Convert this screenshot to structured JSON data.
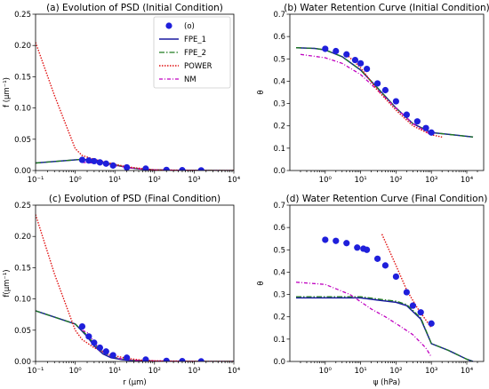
{
  "colors": {
    "obs": "#1f1fdb",
    "fpe1": "#1a1aa0",
    "fpe2": "#1e7a1e",
    "power": "#e01010",
    "nm": "#c000c0"
  },
  "legend": {
    "placement": "upper-right of panel (a)",
    "entries": [
      {
        "key": "obs",
        "label": "(o)",
        "style": "marker"
      },
      {
        "key": "fpe1",
        "label": "FPE_1",
        "style": "solid"
      },
      {
        "key": "fpe2",
        "label": "FPE_2",
        "style": "dashdot"
      },
      {
        "key": "power",
        "label": "POWER",
        "style": "dotted"
      },
      {
        "key": "nm",
        "label": "NM",
        "style": "dashdot2"
      }
    ]
  },
  "chart_data": [
    {
      "id": "a",
      "type": "line",
      "title": "(a) Evolution of PSD (Initial Condition)",
      "xlabel": "",
      "ylabel": "f (μm⁻¹)",
      "xscale": "log",
      "xlim": [
        0.1,
        10000
      ],
      "ylim": [
        0,
        0.25
      ],
      "yticks": [
        0,
        0.05,
        0.1,
        0.15,
        0.2,
        0.25
      ],
      "ytick_labels": [
        "0.00",
        "0.05",
        "0.10",
        "0.15",
        "0.20",
        "0.25"
      ],
      "xtick_labels": [
        "10⁻¹",
        "10⁰",
        "10¹",
        "10²",
        "10³",
        "10⁴"
      ],
      "series": [
        {
          "key": "obs",
          "x": [
            1.5,
            2.2,
            3.0,
            4.2,
            6,
            9,
            20,
            60,
            200,
            500,
            1500
          ],
          "y": [
            0.017,
            0.016,
            0.015,
            0.013,
            0.011,
            0.008,
            0.005,
            0.003,
            0.001,
            0.0005,
            0.0003
          ]
        },
        {
          "key": "fpe1",
          "x": [
            0.1,
            1.5,
            3,
            6,
            10,
            20,
            50,
            100,
            300,
            1000,
            10000
          ],
          "y": [
            0.012,
            0.018,
            0.016,
            0.012,
            0.009,
            0.005,
            0.002,
            0.001,
            0.0003,
            0.0001,
            0
          ]
        },
        {
          "key": "fpe2",
          "x": [
            0.1,
            1.5,
            3,
            6,
            10,
            20,
            50,
            100,
            300,
            1000,
            10000
          ],
          "y": [
            0.012,
            0.018,
            0.016,
            0.012,
            0.009,
            0.005,
            0.002,
            0.001,
            0.0003,
            0.0001,
            0
          ]
        },
        {
          "key": "power",
          "x": [
            0.1,
            0.3,
            1,
            1.5,
            3,
            6,
            10,
            20,
            50,
            100,
            1000,
            10000
          ],
          "y": [
            0.205,
            0.12,
            0.035,
            0.024,
            0.018,
            0.013,
            0.01,
            0.006,
            0.003,
            0.001,
            0.0002,
            0
          ]
        },
        {
          "key": "nm",
          "x": [
            1.5,
            3,
            6,
            10,
            20,
            50,
            100,
            1000
          ],
          "y": [
            0.013,
            0.012,
            0.01,
            0.008,
            0.005,
            0.002,
            0.001,
            0
          ]
        }
      ]
    },
    {
      "id": "b",
      "type": "line",
      "title": "(b) Water Retention Curve (Initial Condition)",
      "xlabel": "",
      "ylabel": "θ",
      "xscale": "log",
      "xlim": [
        0.1,
        30000
      ],
      "ylim": [
        0,
        0.7
      ],
      "yticks": [
        0,
        0.1,
        0.2,
        0.3,
        0.4,
        0.5,
        0.6,
        0.7
      ],
      "ytick_labels": [
        "0.0",
        "0.1",
        "0.2",
        "0.3",
        "0.4",
        "0.5",
        "0.6",
        "0.7"
      ],
      "xticks": [
        1,
        10,
        100,
        1000,
        10000
      ],
      "xtick_labels": [
        "10⁰",
        "10¹",
        "10²",
        "10³",
        "10⁴"
      ],
      "series": [
        {
          "key": "obs",
          "x": [
            1,
            2,
            4,
            7,
            10,
            15,
            30,
            50,
            100,
            200,
            400,
            700,
            1000
          ],
          "y": [
            0.545,
            0.535,
            0.52,
            0.495,
            0.48,
            0.455,
            0.39,
            0.36,
            0.31,
            0.25,
            0.22,
            0.19,
            0.17
          ]
        },
        {
          "key": "fpe1",
          "x": [
            0.15,
            0.5,
            1,
            3,
            10,
            30,
            100,
            300,
            1000,
            3000,
            15000
          ],
          "y": [
            0.55,
            0.547,
            0.54,
            0.51,
            0.45,
            0.37,
            0.28,
            0.21,
            0.17,
            0.162,
            0.15
          ]
        },
        {
          "key": "fpe2",
          "x": [
            0.15,
            0.5,
            1,
            3,
            10,
            30,
            100,
            300,
            1000,
            3000,
            15000
          ],
          "y": [
            0.55,
            0.547,
            0.54,
            0.51,
            0.45,
            0.37,
            0.28,
            0.21,
            0.17,
            0.162,
            0.15
          ]
        },
        {
          "key": "power",
          "x": [
            4,
            10,
            30,
            100,
            300,
            1000,
            2000
          ],
          "y": [
            0.52,
            0.46,
            0.36,
            0.27,
            0.2,
            0.16,
            0.15
          ]
        },
        {
          "key": "nm",
          "x": [
            0.2,
            1,
            3,
            10,
            30,
            100,
            300,
            1000
          ],
          "y": [
            0.52,
            0.505,
            0.48,
            0.43,
            0.36,
            0.28,
            0.21,
            0.16
          ]
        }
      ]
    },
    {
      "id": "c",
      "type": "line",
      "title": "(c) Evolution of PSD (Final Condition)",
      "xlabel": "r (μm)",
      "ylabel": "f(μm⁻¹)",
      "xscale": "log",
      "xlim": [
        0.1,
        10000
      ],
      "ylim": [
        0,
        0.25
      ],
      "yticks": [
        0,
        0.05,
        0.1,
        0.15,
        0.2,
        0.25
      ],
      "ytick_labels": [
        "0.00",
        "0.05",
        "0.10",
        "0.15",
        "0.20",
        "0.25"
      ],
      "xtick_labels": [
        "10⁻¹",
        "10⁰",
        "10¹",
        "10²",
        "10³",
        "10⁴"
      ],
      "series": [
        {
          "key": "obs",
          "x": [
            1.5,
            2.2,
            3.0,
            4.2,
            6,
            9,
            20,
            60,
            200,
            500,
            1500
          ],
          "y": [
            0.056,
            0.04,
            0.03,
            0.022,
            0.016,
            0.01,
            0.006,
            0.003,
            0.001,
            0.0005,
            0.0002
          ]
        },
        {
          "key": "fpe1",
          "x": [
            0.1,
            1,
            2,
            3,
            5,
            8,
            15,
            30,
            100,
            1000,
            10000
          ],
          "y": [
            0.081,
            0.06,
            0.04,
            0.025,
            0.012,
            0.006,
            0.003,
            0.001,
            0.0003,
            0,
            0
          ]
        },
        {
          "key": "fpe2",
          "x": [
            0.1,
            1,
            2,
            3,
            5,
            8,
            15,
            30,
            100,
            1000,
            10000
          ],
          "y": [
            0.081,
            0.06,
            0.042,
            0.028,
            0.015,
            0.008,
            0.004,
            0.002,
            0.0005,
            0,
            0
          ]
        },
        {
          "key": "power",
          "x": [
            0.1,
            0.3,
            1,
            1.5,
            3,
            6,
            10,
            20,
            50,
            100,
            1000,
            10000
          ],
          "y": [
            0.235,
            0.14,
            0.05,
            0.035,
            0.022,
            0.013,
            0.009,
            0.005,
            0.002,
            0.001,
            0.0002,
            0
          ]
        },
        {
          "key": "nm",
          "x": [
            1.5,
            2.2,
            3,
            5,
            8,
            15,
            30,
            100,
            1000
          ],
          "y": [
            0.05,
            0.045,
            0.03,
            0.016,
            0.008,
            0.004,
            0.002,
            0.001,
            0
          ]
        }
      ]
    },
    {
      "id": "d",
      "type": "line",
      "title": "(d) Water Retention Curve (Final Condition)",
      "xlabel": "ψ (hPa)",
      "ylabel": "θ",
      "xscale": "log",
      "xlim": [
        0.1,
        30000
      ],
      "ylim": [
        0,
        0.7
      ],
      "yticks": [
        0,
        0.1,
        0.2,
        0.3,
        0.4,
        0.5,
        0.6,
        0.7
      ],
      "ytick_labels": [
        "0.0",
        "0.1",
        "0.2",
        "0.3",
        "0.4",
        "0.5",
        "0.6",
        "0.7"
      ],
      "xticks": [
        1,
        10,
        100,
        1000,
        10000
      ],
      "xtick_labels": [
        "10⁰",
        "10¹",
        "10²",
        "10³",
        "10⁴"
      ],
      "series": [
        {
          "key": "obs",
          "x": [
            1,
            2,
            4,
            8,
            12,
            15,
            30,
            50,
            100,
            200,
            300,
            500,
            1000
          ],
          "y": [
            0.545,
            0.54,
            0.53,
            0.51,
            0.505,
            0.5,
            0.46,
            0.43,
            0.38,
            0.31,
            0.25,
            0.22,
            0.17
          ]
        },
        {
          "key": "fpe1",
          "x": [
            0.15,
            1,
            10,
            30,
            100,
            200,
            500,
            1000,
            3000,
            10000,
            15000
          ],
          "y": [
            0.285,
            0.285,
            0.285,
            0.275,
            0.265,
            0.25,
            0.19,
            0.08,
            0.05,
            0.01,
            0
          ]
        },
        {
          "key": "fpe2",
          "x": [
            0.15,
            1,
            10,
            30,
            100,
            200,
            500,
            1000,
            3000,
            10000,
            15000
          ],
          "y": [
            0.29,
            0.29,
            0.29,
            0.28,
            0.27,
            0.255,
            0.195,
            0.08,
            0.05,
            0.01,
            0
          ]
        },
        {
          "key": "power",
          "x": [
            40,
            100,
            200,
            400,
            1000
          ],
          "y": [
            0.57,
            0.43,
            0.32,
            0.24,
            0.15
          ]
        },
        {
          "key": "nm",
          "x": [
            0.15,
            1,
            5,
            20,
            50,
            100,
            300,
            700,
            1000
          ],
          "y": [
            0.355,
            0.345,
            0.3,
            0.235,
            0.2,
            0.17,
            0.12,
            0.06,
            0.02
          ]
        }
      ]
    }
  ]
}
